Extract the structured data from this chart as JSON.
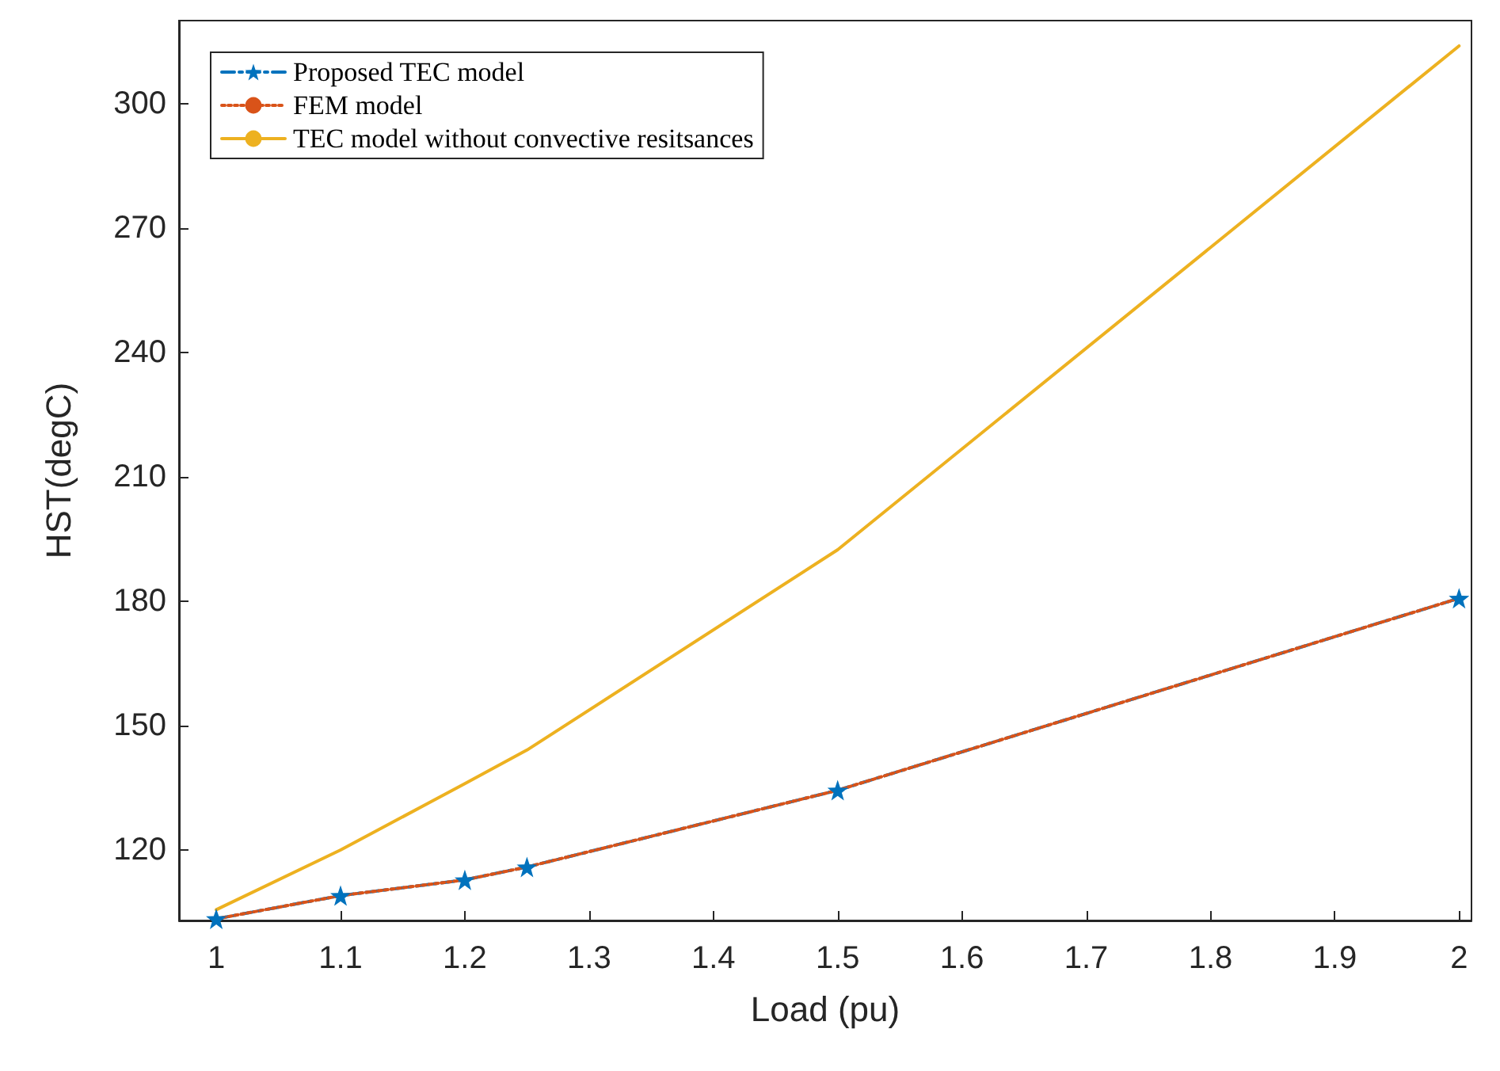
{
  "chart_data": {
    "type": "line",
    "xlabel": "Load (pu)",
    "ylabel": "HST(degC)",
    "x": [
      1,
      1.1,
      1.2,
      1.25,
      1.5,
      2
    ],
    "series": [
      {
        "name": "Proposed TEC model",
        "color": "#0072bd",
        "line_style": "dashdot",
        "marker": "star",
        "values": [
          103.4,
          109,
          112.8,
          115.9,
          134.4,
          180.7
        ]
      },
      {
        "name": "FEM model",
        "color": "#d95319",
        "line_style": "dotted",
        "marker": "none",
        "values": [
          103.4,
          109,
          112.8,
          115.9,
          134.4,
          180.7
        ]
      },
      {
        "name": "TEC model without convective resitsances",
        "color": "#edb120",
        "line_style": "solid",
        "marker": "none",
        "values": [
          105.6,
          120,
          136,
          144.1,
          192.4,
          313.9
        ]
      }
    ],
    "xlim": [
      0.97,
      2.01
    ],
    "xticks": [
      1,
      1.1,
      1.2,
      1.3,
      1.4,
      1.5,
      1.6,
      1.7,
      1.8,
      1.9,
      2
    ],
    "ylim": [
      103,
      320
    ],
    "yticks": [
      120,
      150,
      180,
      210,
      240,
      270,
      300
    ],
    "grid": false,
    "legend": "top left"
  }
}
